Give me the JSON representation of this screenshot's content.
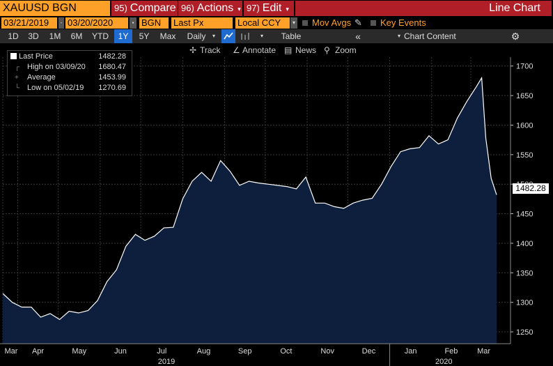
{
  "toolbar": {
    "security": "XAUUSD BGN Curncy",
    "compare_num": "95)",
    "compare_label": "Compare",
    "actions_num": "96)",
    "actions_label": "Actions",
    "edit_num": "97)",
    "edit_label": "Edit",
    "title": "Line Chart"
  },
  "settings": {
    "start_date": "03/21/2019",
    "end_date": "03/20/2020",
    "source": "BGN",
    "field": "Last Px",
    "currency": "Local CCY",
    "mov_avgs": "Mov Avgs",
    "key_events": "Key Events"
  },
  "ranges": [
    "1D",
    "3D",
    "1M",
    "6M",
    "YTD",
    "1Y",
    "5Y",
    "Max"
  ],
  "selected_range": "1Y",
  "frequency": "Daily",
  "table_label": "Table",
  "chart_content_label": "Chart Content",
  "tools": {
    "track": "Track",
    "annotate": "Annotate",
    "news": "News",
    "zoom": "Zoom"
  },
  "legend": {
    "last_label": "Last Price",
    "last_value": "1482.28",
    "high_label": "High on 03/09/20",
    "high_value": "1680.47",
    "avg_label": "Average",
    "avg_value": "1453.99",
    "low_label": "Low on 05/02/19",
    "low_value": "1270.69"
  },
  "price_tag": "1482.28",
  "colors": {
    "accent_orange": "#ffa028",
    "title_red": "#b01e28",
    "fill": "#0d1f3d",
    "line": "#ffffff",
    "selected_blue": "#1f6bd0"
  },
  "chart_data": {
    "type": "area",
    "y_ticks": [
      1250,
      1300,
      1350,
      1400,
      1450,
      1500,
      1550,
      1600,
      1650,
      1700
    ],
    "ylim": [
      1230,
      1715
    ],
    "month_ticks": [
      "Mar",
      "Apr",
      "May",
      "Jun",
      "Jul",
      "Aug",
      "Sep",
      "Oct",
      "Nov",
      "Dec",
      "Jan",
      "Feb",
      "Mar"
    ],
    "year_labels": [
      "2019",
      "2020"
    ],
    "x": [
      "2019-03-21",
      "2019-03-28",
      "2019-04-04",
      "2019-04-11",
      "2019-04-18",
      "2019-04-25",
      "2019-05-02",
      "2019-05-09",
      "2019-05-16",
      "2019-05-23",
      "2019-05-30",
      "2019-06-06",
      "2019-06-13",
      "2019-06-20",
      "2019-06-27",
      "2019-07-04",
      "2019-07-11",
      "2019-07-18",
      "2019-07-25",
      "2019-08-01",
      "2019-08-08",
      "2019-08-15",
      "2019-08-22",
      "2019-08-29",
      "2019-09-05",
      "2019-09-12",
      "2019-09-19",
      "2019-09-26",
      "2019-10-03",
      "2019-10-10",
      "2019-10-17",
      "2019-10-24",
      "2019-10-31",
      "2019-11-07",
      "2019-11-14",
      "2019-11-21",
      "2019-11-28",
      "2019-12-05",
      "2019-12-12",
      "2019-12-19",
      "2019-12-26",
      "2020-01-02",
      "2020-01-09",
      "2020-01-16",
      "2020-01-23",
      "2020-01-30",
      "2020-02-06",
      "2020-02-13",
      "2020-02-20",
      "2020-02-27",
      "2020-03-05",
      "2020-03-09",
      "2020-03-12",
      "2020-03-16",
      "2020-03-20"
    ],
    "values": [
      1315,
      1300,
      1292,
      1292,
      1275,
      1281,
      1271,
      1285,
      1282,
      1286,
      1303,
      1335,
      1355,
      1395,
      1415,
      1405,
      1412,
      1426,
      1427,
      1475,
      1505,
      1520,
      1505,
      1540,
      1522,
      1498,
      1505,
      1502,
      1500,
      1498,
      1496,
      1492,
      1512,
      1468,
      1468,
      1462,
      1459,
      1468,
      1473,
      1476,
      1500,
      1530,
      1555,
      1560,
      1562,
      1582,
      1568,
      1575,
      1612,
      1640,
      1665,
      1680,
      1578,
      1510,
      1482
    ]
  }
}
